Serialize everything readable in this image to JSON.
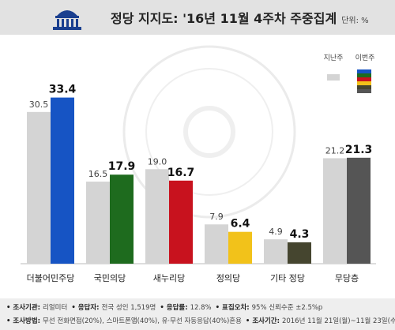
{
  "header": {
    "title": "정당 지지도: '16년 11월 4주차 주중집계",
    "unit": "단위: %"
  },
  "legend": {
    "prev_label": "지난주",
    "curr_label": "이번주"
  },
  "colors": {
    "prev_bar": "#d4d4d4",
    "parties": [
      "#1654c4",
      "#1e6b1e",
      "#c8121e",
      "#f2c21a",
      "#45452f",
      "#555555"
    ]
  },
  "chart_data": {
    "type": "bar",
    "title": "정당 지지도: '16년 11월 4주차 주중집계",
    "unit": "단위: %",
    "categories": [
      "더불어민주당",
      "국민의당",
      "새누리당",
      "정의당",
      "기타 정당",
      "무당층"
    ],
    "series": [
      {
        "name": "지난주",
        "values": [
          30.5,
          16.5,
          19.0,
          7.9,
          4.9,
          21.2
        ]
      },
      {
        "name": "이번주",
        "values": [
          33.4,
          17.9,
          16.7,
          6.4,
          4.3,
          21.3
        ]
      }
    ],
    "ylim": [
      0,
      40
    ],
    "grid": false,
    "legend_position": "top-right"
  },
  "footer": {
    "line1": [
      {
        "label": "조사기관",
        "value": "리얼미터"
      },
      {
        "label": "응답자",
        "value": "전국 성인 1,519명"
      },
      {
        "label": "응답률",
        "value": "12.8%"
      },
      {
        "label": "표집오차",
        "value": "95% 신뢰수준 ±2.5%p"
      }
    ],
    "line2": [
      {
        "label": "조사방법",
        "value": "무선 전화면접(20%), 스마트폰앱(40%), 유·무선 자동응답(40%)혼용"
      },
      {
        "label": "조사기간",
        "value": "2016년 11월 21일(월)~11월 23일(수)"
      }
    ]
  }
}
